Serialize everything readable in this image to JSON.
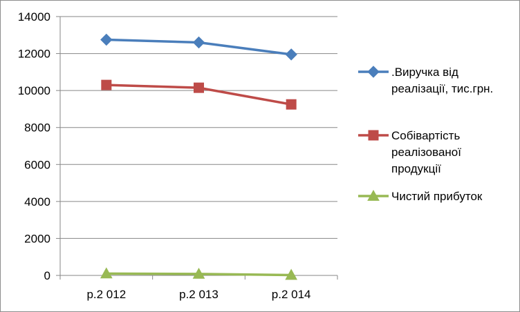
{
  "chart_data": {
    "type": "line",
    "categories": [
      "р.2 012",
      "р.2 013",
      "р.2 014"
    ],
    "ylim": [
      0,
      14000
    ],
    "yticks": [
      "0",
      "2000",
      "4000",
      "6000",
      "8000",
      "10000",
      "12000",
      "14000"
    ],
    "grid": true,
    "legend_position": "right",
    "series": [
      {
        "name_lines": [
          ".Виручка від",
          "реалізації, тис.грн."
        ],
        "values": [
          12750,
          12600,
          11950
        ],
        "color": "#4a7ebb",
        "marker": "diamond"
      },
      {
        "name_lines": [
          "Собівартість",
          "реалізованої",
          "продукції"
        ],
        "values": [
          10300,
          10150,
          9250
        ],
        "color": "#be4b48",
        "marker": "square"
      },
      {
        "name_lines": [
          "Чистий прибуток"
        ],
        "values": [
          100,
          80,
          20
        ],
        "color": "#98b954",
        "marker": "triangle"
      }
    ]
  }
}
